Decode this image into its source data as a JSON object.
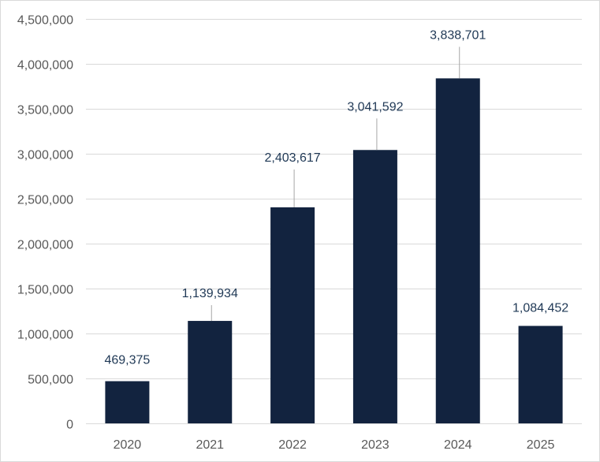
{
  "chart_data": {
    "type": "bar",
    "title": "",
    "xlabel": "",
    "ylabel": "",
    "categories": [
      "2020",
      "2021",
      "2022",
      "2023",
      "2024",
      "2025"
    ],
    "values": [
      469375,
      1139934,
      2403617,
      3041592,
      3838701,
      1084452
    ],
    "data_labels": [
      "469,375",
      "1,139,934",
      "2,403,617",
      "3,041,592",
      "3,838,701",
      "1,084,452"
    ],
    "ylim": [
      0,
      4500000
    ],
    "y_ticks": [
      0,
      500000,
      1000000,
      1500000,
      2000000,
      2500000,
      3000000,
      3500000,
      4000000,
      4500000
    ],
    "y_tick_labels": [
      "0",
      "500,000",
      "1,000,000",
      "1,500,000",
      "2,000,000",
      "2,500,000",
      "3,000,000",
      "3,500,000",
      "4,000,000",
      "4,500,000"
    ],
    "grid": true,
    "legend": "none",
    "bar_color": "#12233f"
  }
}
